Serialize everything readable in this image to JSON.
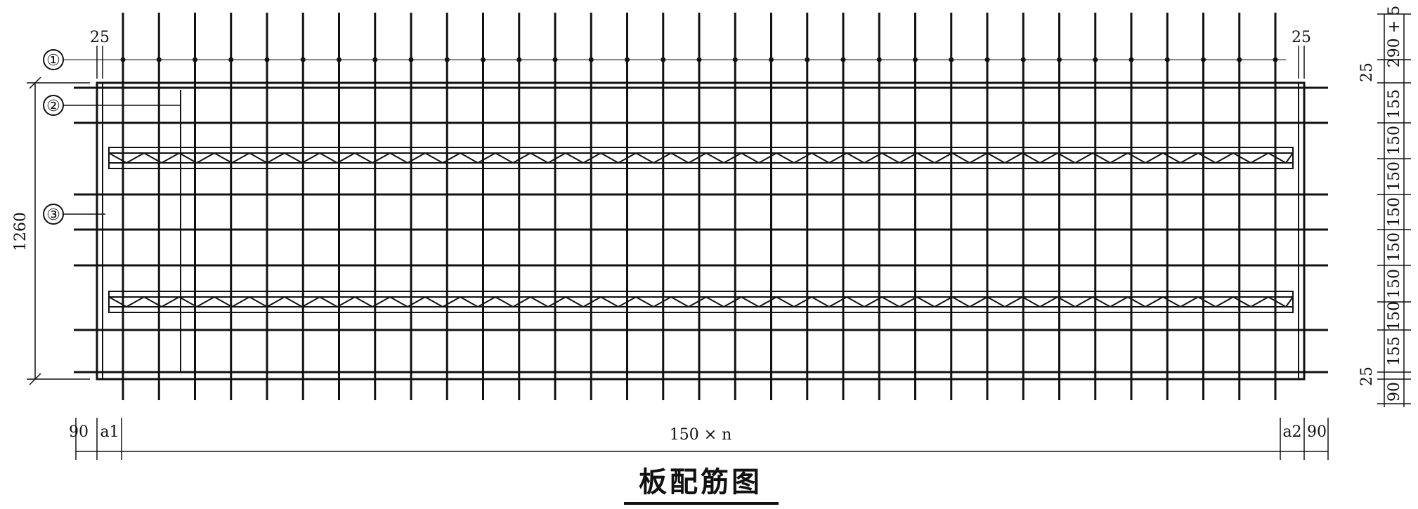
{
  "title": "板配筋图",
  "callouts": [
    "①",
    "②",
    "③"
  ],
  "top_dims": {
    "left": "25",
    "right": "25"
  },
  "left_dim": "1260",
  "bottom_dims": [
    "90",
    "a1",
    "150 × n",
    "a2",
    "90"
  ],
  "right_dims": [
    "290 + 5",
    "25",
    "155",
    "150",
    "150",
    "150",
    "150",
    "150",
    "150",
    "155",
    "25",
    "90"
  ],
  "colors": {
    "line": "#111111",
    "background": "#ffffff"
  }
}
